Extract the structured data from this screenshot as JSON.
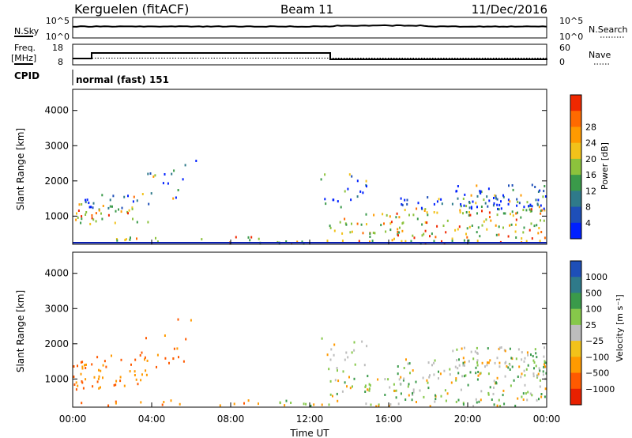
{
  "header": {
    "station": "Kerguelen (fitACF)",
    "beam": "Beam 11",
    "date": "11/Dec/2016"
  },
  "panels": {
    "sky": {
      "left_label": "N.Sky",
      "left_ticks": [
        "10^5",
        "10^0"
      ],
      "right_ticks": [
        "10^5",
        "10^0"
      ],
      "right_label": "N.Search"
    },
    "freq": {
      "left_label_line1": "Freq.",
      "left_label_line2": "[MHz]",
      "left_ticks": [
        "18",
        "8"
      ],
      "right_ticks": [
        "60",
        "0"
      ],
      "right_label": "Nave"
    },
    "cpid": {
      "label": "CPID",
      "value": "normal (fast) 151"
    }
  },
  "chart_data": [
    {
      "type": "heatmap",
      "name": "power",
      "ylabel": "Slant Range [km]",
      "yticks": [
        "1000",
        "2000",
        "3000",
        "4000"
      ],
      "ylim": [
        200,
        4600
      ],
      "colorbar_label": "Power [dB]",
      "colorbar_ticks": [
        "4",
        "8",
        "12",
        "16",
        "20",
        "24",
        "28"
      ],
      "colorbar_colors": [
        "#0020ff",
        "#1e4fb8",
        "#2f7a8a",
        "#3a9a4a",
        "#8cc23c",
        "#f2c21a",
        "#ff9a00",
        "#ff6a00",
        "#f02800"
      ]
    },
    {
      "type": "heatmap",
      "name": "velocity",
      "ylabel": "Slant Range [km]",
      "yticks": [
        "1000",
        "2000",
        "3000",
        "4000"
      ],
      "ylim": [
        200,
        4600
      ],
      "colorbar_label": "Velocity [m s⁻¹]",
      "colorbar_ticks": [
        "1000",
        "500",
        "100",
        "25",
        "−25",
        "−100",
        "−500",
        "−1000"
      ],
      "colorbar_colors": [
        "#1e4fb8",
        "#2f7a8a",
        "#3a9a4a",
        "#86c84a",
        "#bdbdbd",
        "#f2c21a",
        "#ff9a00",
        "#ff5a00",
        "#e82000"
      ]
    }
  ],
  "xaxis": {
    "ticks": [
      "00:00",
      "04:00",
      "08:00",
      "12:00",
      "16:00",
      "20:00",
      "00:00"
    ],
    "label": "Time UT"
  }
}
